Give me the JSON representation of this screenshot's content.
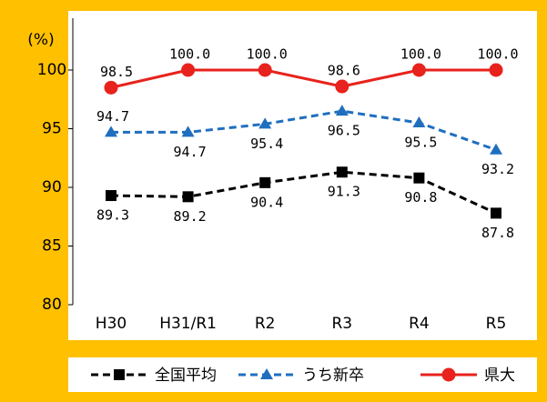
{
  "chart_data": {
    "type": "line",
    "y_label": "(%)",
    "categories": [
      "H30",
      "H31/R1",
      "R2",
      "R3",
      "R4",
      "R5"
    ],
    "series": [
      {
        "name": "全国平均",
        "color": "#000000",
        "dash": true,
        "marker": "square",
        "values": [
          89.3,
          89.2,
          90.4,
          91.3,
          90.8,
          87.8
        ]
      },
      {
        "name": "うち新卒",
        "color": "#1f6fbf",
        "dash": true,
        "marker": "triangle",
        "values": [
          94.7,
          94.7,
          95.4,
          96.5,
          95.5,
          93.2
        ]
      },
      {
        "name": "県大",
        "color": "#e8221c",
        "dash": false,
        "marker": "circle",
        "values": [
          98.5,
          100,
          100,
          98.6,
          100,
          100
        ],
        "value_labels": [
          "98.5",
          "100.0",
          "100.0",
          "98.6",
          "100.0",
          "100.0"
        ]
      }
    ],
    "ylim": [
      80,
      100
    ],
    "yticks": [
      80,
      85,
      90,
      95,
      100
    ],
    "legend": "bottom"
  }
}
